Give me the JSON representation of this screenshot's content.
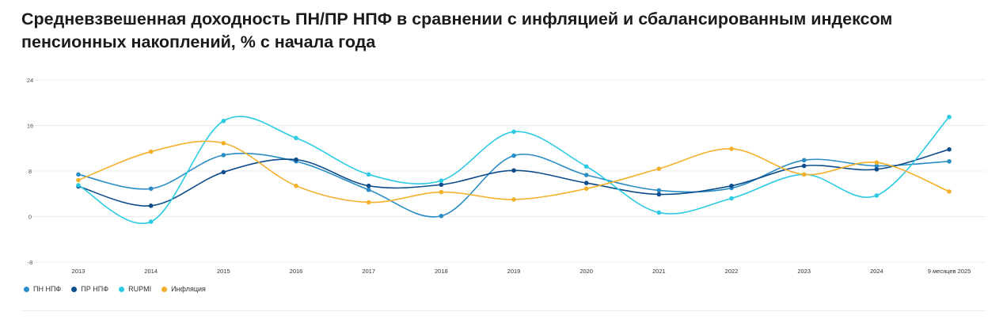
{
  "title": "Средневзвешенная доходность ПН/ПР НПФ в сравнении с инфляцией и сбалансированным индексом пенсионных накоплений, % с начала года",
  "chart_data": {
    "type": "line",
    "categories": [
      "2013",
      "2014",
      "2015",
      "2016",
      "2017",
      "2018",
      "2019",
      "2020",
      "2021",
      "2022",
      "2023",
      "2024",
      "9 месяцев 2025"
    ],
    "y_ticks": [
      "24",
      "16",
      "8",
      "0",
      "-8"
    ],
    "ylim": [
      -8,
      24
    ],
    "grid": true,
    "legend_position": "bottom-left",
    "series": [
      {
        "name": "ПН НПФ",
        "color": "#2a8cc4",
        "values": [
          7.4,
          4.9,
          10.8,
          9.7,
          4.7,
          0.1,
          10.7,
          7.3,
          4.6,
          5.0,
          9.9,
          8.9,
          9.7
        ]
      },
      {
        "name": "ПР НПФ",
        "color": "#0d4d8c",
        "values": [
          5.3,
          1.9,
          7.8,
          10.0,
          5.4,
          5.6,
          8.1,
          5.9,
          3.9,
          5.4,
          8.9,
          8.3,
          11.8
        ]
      },
      {
        "name": "RUPMI",
        "color": "#2ccbe3",
        "values": [
          5.5,
          -0.9,
          16.8,
          13.8,
          7.4,
          6.3,
          14.9,
          8.8,
          0.7,
          3.2,
          7.4,
          3.7,
          17.5
        ]
      },
      {
        "name": "Инфляция",
        "color": "#f5b02b",
        "values": [
          6.4,
          11.4,
          12.9,
          5.4,
          2.5,
          4.3,
          3.0,
          4.9,
          8.4,
          11.9,
          7.4,
          9.5,
          4.4
        ]
      }
    ]
  }
}
